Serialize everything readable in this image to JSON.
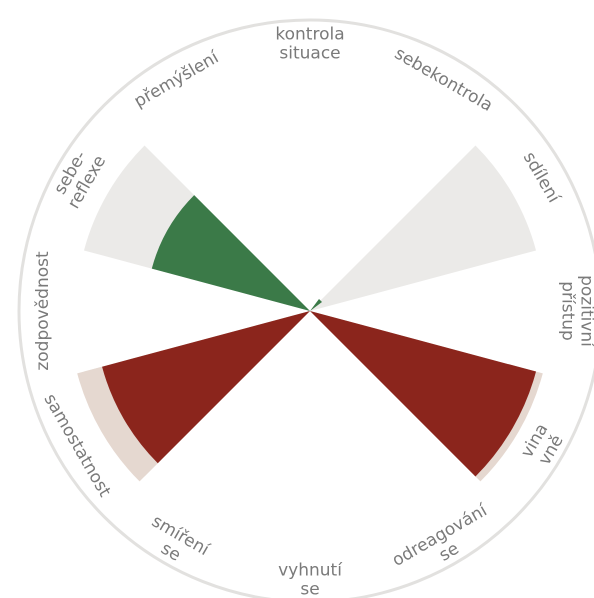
{
  "chart_data": {
    "type": "polar-area",
    "title": "",
    "categories": [
      {
        "label": [
          "kontrola",
          "situace"
        ],
        "light": 0,
        "value": 0
      },
      {
        "label": [
          "sebekontrola"
        ],
        "light": 0,
        "value": 0
      },
      {
        "label": [
          "sdílení"
        ],
        "light": 1.0,
        "value": 0
      },
      {
        "label": [
          "pozitivní",
          "přístup"
        ],
        "light": 0,
        "value": 0
      },
      {
        "label": [
          "vina",
          "vně"
        ],
        "light": 1.0,
        "value": 1.0,
        "sign": "negative"
      },
      {
        "label": [
          "odreagování",
          "se"
        ],
        "light": 0,
        "value": 0
      },
      {
        "label": [
          "vyhnutí",
          "se"
        ],
        "light": 0,
        "value": 0
      },
      {
        "label": [
          "smíření",
          "se"
        ],
        "light": 0,
        "value": 0
      },
      {
        "label": [
          "samostatnost"
        ],
        "light": 1.0,
        "value": 0.92,
        "sign": "negative"
      },
      {
        "label": [
          "zodpovědnost"
        ],
        "light": 0,
        "value": 0
      },
      {
        "label": [
          "sebe-",
          "reflexe"
        ],
        "light": 1.0,
        "value": 0.7,
        "sign": "positive"
      },
      {
        "label": [
          "přemýšlení"
        ],
        "light": 0,
        "value": 0
      }
    ],
    "colors": {
      "positive": "#3b7a48",
      "negative": "#8b251c",
      "light": "#ebeae8",
      "light_edge": "#e5d8d0",
      "ring": "#e2e1df",
      "label": "#7a7a7a"
    }
  }
}
